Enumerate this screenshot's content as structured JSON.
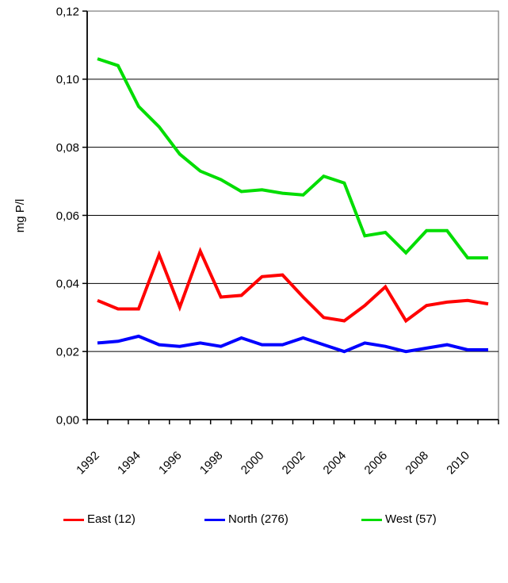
{
  "chart_data": {
    "type": "line",
    "ylabel": "mg P/l",
    "x": [
      1992,
      1993,
      1994,
      1995,
      1996,
      1997,
      1998,
      1999,
      2000,
      2001,
      2002,
      2003,
      2004,
      2005,
      2006,
      2007,
      2008,
      2009,
      2010,
      2011
    ],
    "x_tick_labels": [
      "1992",
      "1994",
      "1996",
      "1998",
      "2000",
      "2002",
      "2004",
      "2006",
      "2008",
      "2010"
    ],
    "x_label_step": 2,
    "ylim": [
      0,
      0.12
    ],
    "y_tick_labels": [
      "0,00",
      "0,02",
      "0,04",
      "0,06",
      "0,08",
      "0,10",
      "0,12"
    ],
    "grid": true,
    "legend_position": "bottom",
    "series": [
      {
        "name": "East (12)",
        "color": "#FF0000",
        "values": [
          0.035,
          0.0325,
          0.0325,
          0.0485,
          0.033,
          0.0495,
          0.036,
          0.0365,
          0.042,
          0.0425,
          0.036,
          0.03,
          0.029,
          0.0335,
          0.039,
          0.029,
          0.0335,
          0.0345,
          0.035,
          0.034
        ]
      },
      {
        "name": "North (276)",
        "color": "#0000FF",
        "values": [
          0.0225,
          0.023,
          0.0245,
          0.022,
          0.0215,
          0.0225,
          0.0215,
          0.024,
          0.022,
          0.022,
          0.024,
          0.022,
          0.02,
          0.0225,
          0.0215,
          0.02,
          0.021,
          0.022,
          0.0205,
          0.0205
        ]
      },
      {
        "name": "West (57)",
        "color": "#00DD00",
        "values": [
          0.106,
          0.104,
          0.092,
          0.086,
          0.078,
          0.073,
          0.0705,
          0.067,
          0.0675,
          0.0665,
          0.066,
          0.0715,
          0.0695,
          0.054,
          0.055,
          0.049,
          0.0555,
          0.0555,
          0.0475,
          0.0475
        ]
      }
    ]
  }
}
